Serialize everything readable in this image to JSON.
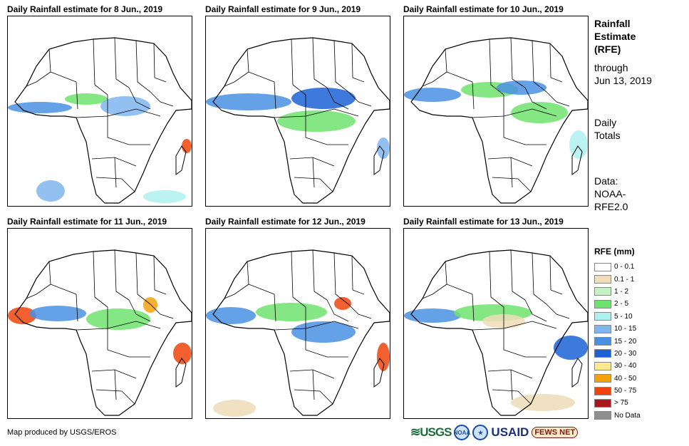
{
  "panels": [
    {
      "title": "Daily Rainfall estimate for 8 Jun., 2019"
    },
    {
      "title": "Daily Rainfall estimate for 9 Jun., 2019"
    },
    {
      "title": "Daily Rainfall estimate for 10 Jun., 2019"
    },
    {
      "title": "Daily Rainfall estimate for 11 Jun., 2019"
    },
    {
      "title": "Daily Rainfall estimate for 12 Jun., 2019"
    },
    {
      "title": "Daily Rainfall estimate for 13 Jun., 2019"
    }
  ],
  "sidebar": {
    "title1": "Rainfall",
    "title2": "Estimate",
    "title3": "(RFE)",
    "through1": "through",
    "through2": "Jun 13, 2019",
    "daily1": "Daily",
    "daily2": "Totals",
    "data1": "Data:",
    "data2": "NOAA-",
    "data3": "RFE2.0"
  },
  "legend": {
    "title": "RFE (mm)",
    "items": [
      {
        "label": "0 - 0.1",
        "color": "#ffffff"
      },
      {
        "label": "0.1 - 1",
        "color": "#efdcb8"
      },
      {
        "label": "1 - 2",
        "color": "#c3f2c3"
      },
      {
        "label": "2 - 5",
        "color": "#6fe36f"
      },
      {
        "label": "5 - 10",
        "color": "#aff0f0"
      },
      {
        "label": "10 - 15",
        "color": "#7fb6ee"
      },
      {
        "label": "15 - 20",
        "color": "#4a90e2"
      },
      {
        "label": "20 - 30",
        "color": "#1c62d6"
      },
      {
        "label": "30 - 40",
        "color": "#ffe98a"
      },
      {
        "label": "40 - 50",
        "color": "#f3a20a"
      },
      {
        "label": "50 - 75",
        "color": "#f0440c"
      },
      {
        "label": "> 75",
        "color": "#a8181a"
      },
      {
        "label": "No Data",
        "color": "#8f8f8f"
      }
    ]
  },
  "footer": {
    "credit": "Map produced by USGS/EROS",
    "logo_usgs": "≋USGS",
    "logo_noaa": "NOAA",
    "logo_usaid": "USAID",
    "logo_fews": "FEWS NET"
  }
}
